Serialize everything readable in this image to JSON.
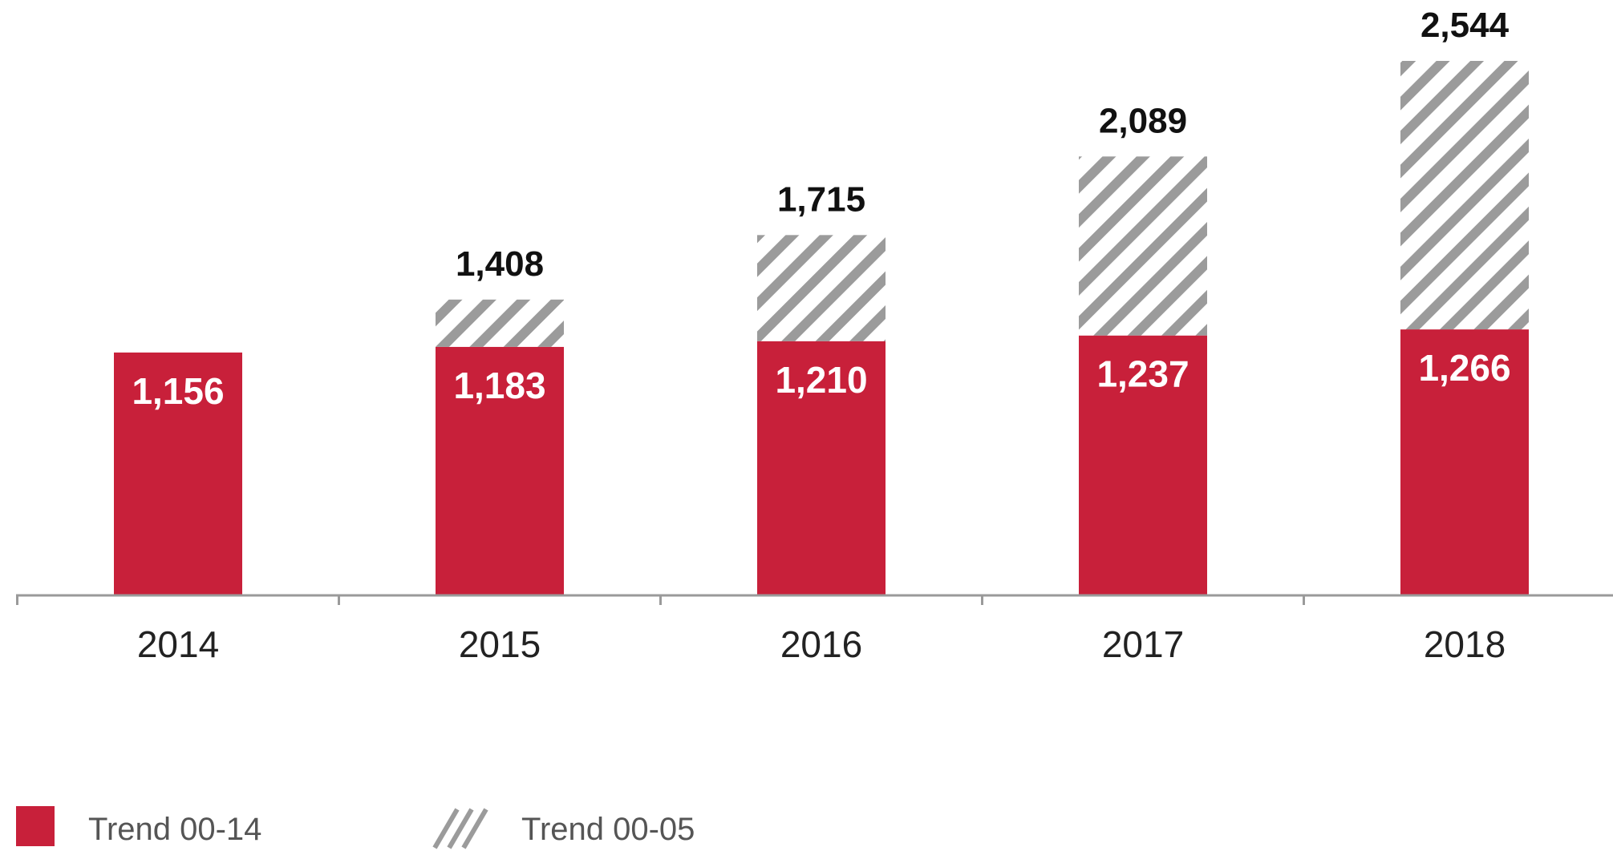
{
  "chart_data": {
    "type": "bar",
    "stacked": true,
    "categories": [
      "2014",
      "2015",
      "2016",
      "2017",
      "2018"
    ],
    "series": [
      {
        "name": "Trend 00-14",
        "values": [
          1156,
          1183,
          1210,
          1237,
          1266
        ],
        "color": "#c8203a",
        "fill": "solid"
      },
      {
        "name": "Trend 00-05",
        "values": [
          0,
          225,
          505,
          852,
          1278
        ],
        "color": "#9b9b9b",
        "fill": "diagonal-hatch"
      }
    ],
    "segment_labels": [
      "1,156",
      "1,183",
      "1,210",
      "1,237",
      "1,266"
    ],
    "total_labels": [
      "",
      "1,408",
      "1,715",
      "2,089",
      "2,544"
    ],
    "ylim": [
      0,
      2544
    ],
    "grid": false,
    "legend": "bottom-left"
  }
}
